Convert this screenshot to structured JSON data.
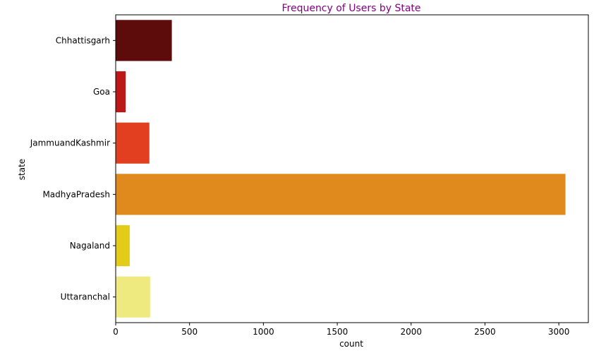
{
  "chart_data": {
    "type": "bar",
    "orientation": "horizontal",
    "title": "Frequency of Users by State",
    "title_color": "#800080",
    "xlabel": "count",
    "ylabel": "state",
    "categories": [
      "Chhattisgarh",
      "Goa",
      "JammuandKashmir",
      "MadhyaPradesh",
      "Nagaland",
      "Uttaranchal"
    ],
    "values": [
      380,
      68,
      228,
      3045,
      95,
      233
    ],
    "colors": [
      "#5e0b0b",
      "#bd1717",
      "#e23f20",
      "#e08a1e",
      "#e2cc17",
      "#efea80"
    ],
    "xlim": [
      0,
      3200
    ],
    "xticks": [
      0,
      500,
      1000,
      1500,
      2000,
      2500,
      3000
    ],
    "grid": false,
    "legend": "none"
  }
}
